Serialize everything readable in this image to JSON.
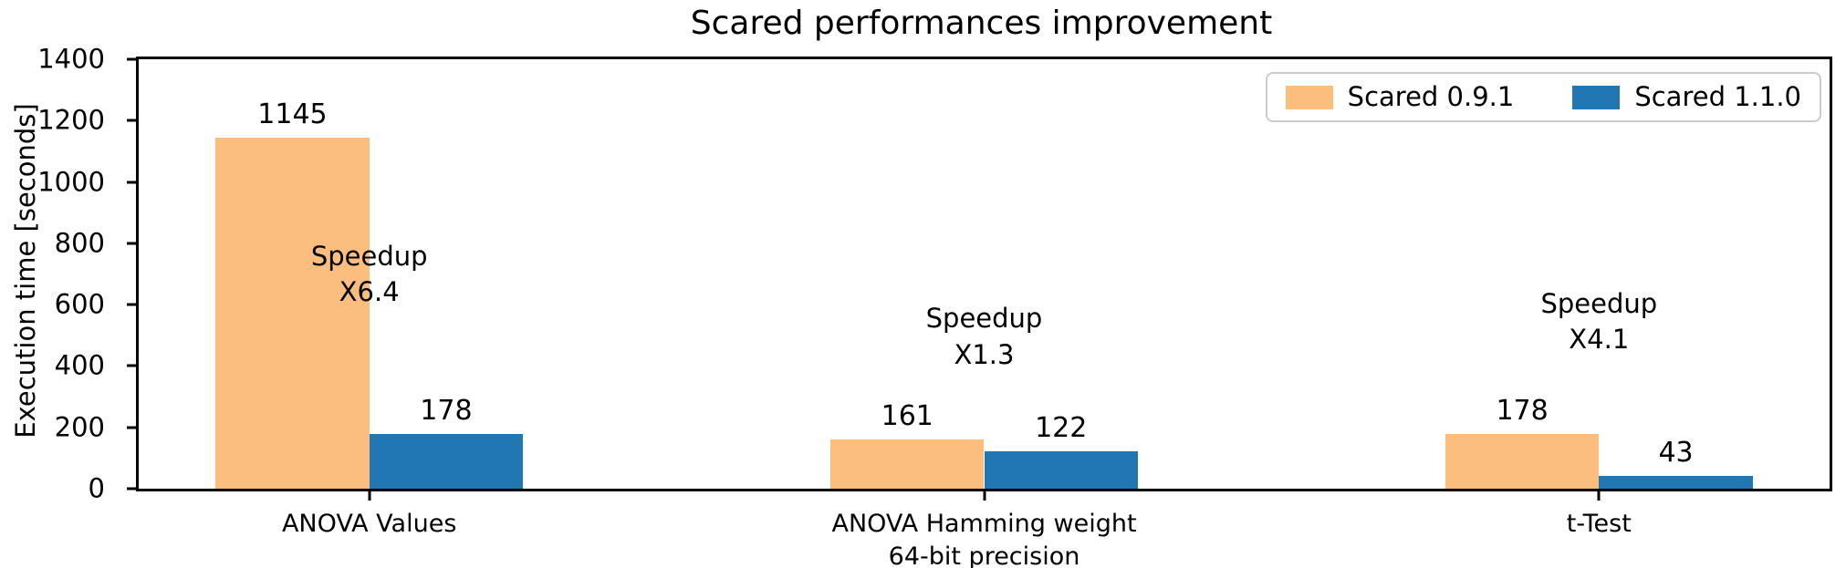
{
  "chart_data": {
    "type": "bar",
    "title": "Scared performances improvement",
    "xlabel": "",
    "ylabel": "Execution time [seconds]",
    "categories": [
      "ANOVA Values",
      "ANOVA Hamming weight\n64-bit precision",
      "t-Test"
    ],
    "x": [
      0,
      1,
      2
    ],
    "series": [
      {
        "name": "Scared 0.9.1",
        "color": "#FBBE7E",
        "values": [
          1145,
          161,
          178
        ]
      },
      {
        "name": "Scared 1.1.0",
        "color": "#2077B4",
        "values": [
          178,
          122,
          43
        ]
      }
    ],
    "annotations": [
      {
        "x": 0,
        "y": 700,
        "text": "Speedup\nX6.4"
      },
      {
        "x": 1,
        "y": 495,
        "text": "Speedup\nX1.3"
      },
      {
        "x": 2,
        "y": 545,
        "text": "Speedup\nX4.1"
      }
    ],
    "yticks": [
      0,
      200,
      400,
      600,
      800,
      1000,
      1200,
      1400
    ],
    "ylim": [
      0,
      1400
    ],
    "xlim": [
      -0.375,
      2.375
    ],
    "bar_width": 0.25,
    "grid": false,
    "legend_position": "upper right",
    "text_color": "#000000",
    "axis_color": "#000000"
  }
}
